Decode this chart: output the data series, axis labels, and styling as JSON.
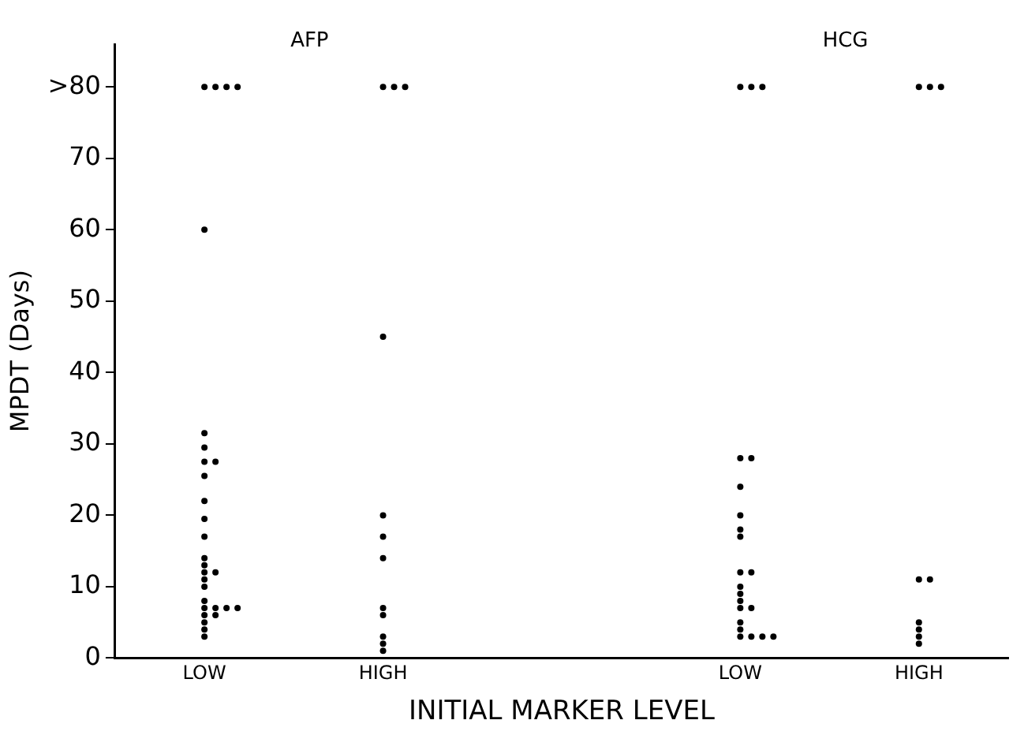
{
  "chart_data": {
    "type": "scatter",
    "xlabel": "INITIAL MARKER LEVEL",
    "ylabel": "MPDT (Days)",
    "categories": [
      "LOW",
      "HIGH",
      null,
      "LOW",
      "HIGH"
    ],
    "annotations": [
      "AFP",
      "HCG"
    ],
    "series": [
      {
        "color": "#000000",
        "values": [
          60,
          45,
          null,
          28,
          11
        ]
      },
      {
        "color": "#000000",
        "values": [
          31.5,
          20,
          null,
          28,
          11
        ]
      },
      {
        "color": "#000000",
        "values": [
          29.5,
          17,
          null,
          24,
          5
        ]
      },
      {
        "color": "#000000",
        "values": [
          27.5,
          14,
          null,
          20,
          4
        ]
      },
      {
        "color": "#000000",
        "values": [
          27.5,
          7,
          null,
          18,
          3
        ]
      },
      {
        "color": "#000000",
        "values": [
          25.5,
          6,
          null,
          17,
          2
        ]
      },
      {
        "color": "#000000",
        "values": [
          22,
          3,
          null,
          12,
          80
        ]
      },
      {
        "color": "#000000",
        "values": [
          19.5,
          2,
          null,
          12,
          80
        ]
      },
      {
        "color": "#000000",
        "values": [
          17,
          1,
          null,
          10,
          80
        ]
      },
      {
        "color": "#000000",
        "values": [
          14,
          80,
          null,
          9,
          null
        ]
      },
      {
        "color": "#000000",
        "values": [
          13,
          80,
          null,
          8,
          null
        ]
      },
      {
        "color": "#000000",
        "values": [
          12,
          80,
          null,
          7,
          null
        ]
      },
      {
        "color": "#000000",
        "values": [
          12,
          null,
          null,
          7,
          null
        ]
      },
      {
        "color": "#000000",
        "values": [
          11,
          null,
          null,
          5,
          null
        ]
      },
      {
        "color": "#000000",
        "values": [
          10,
          null,
          null,
          4,
          null
        ]
      },
      {
        "color": "#000000",
        "values": [
          8,
          null,
          null,
          3,
          null
        ]
      },
      {
        "color": "#000000",
        "values": [
          7,
          null,
          null,
          3,
          null
        ]
      },
      {
        "color": "#000000",
        "values": [
          7,
          null,
          null,
          3,
          null
        ]
      },
      {
        "color": "#000000",
        "values": [
          7,
          null,
          null,
          3,
          null
        ]
      },
      {
        "color": "#000000",
        "values": [
          7,
          null,
          null,
          80,
          null
        ]
      },
      {
        "color": "#000000",
        "values": [
          6,
          null,
          null,
          80,
          null
        ]
      },
      {
        "color": "#000000",
        "values": [
          6,
          null,
          null,
          80,
          null
        ]
      },
      {
        "color": "#000000",
        "values": [
          5,
          null,
          null,
          null,
          null
        ]
      },
      {
        "color": "#000000",
        "values": [
          4,
          null,
          null,
          null,
          null
        ]
      },
      {
        "color": "#000000",
        "values": [
          3,
          null,
          null,
          null,
          null
        ]
      },
      {
        "color": "#000000",
        "values": [
          80,
          null,
          null,
          null,
          null
        ]
      },
      {
        "color": "#000000",
        "values": [
          80,
          null,
          null,
          null,
          null
        ]
      },
      {
        "color": "#000000",
        "values": [
          80,
          null,
          null,
          null,
          null
        ]
      },
      {
        "color": "#000000",
        "values": [
          80,
          null,
          null,
          null,
          null
        ]
      }
    ],
    "marker": "circle",
    "grid": false,
    "ylim": [
      0,
      86
    ],
    "yticks": [
      0,
      10,
      20,
      30,
      40,
      50,
      60,
      70,
      {
        "value": 80,
        "label": ">80"
      }
    ]
  }
}
